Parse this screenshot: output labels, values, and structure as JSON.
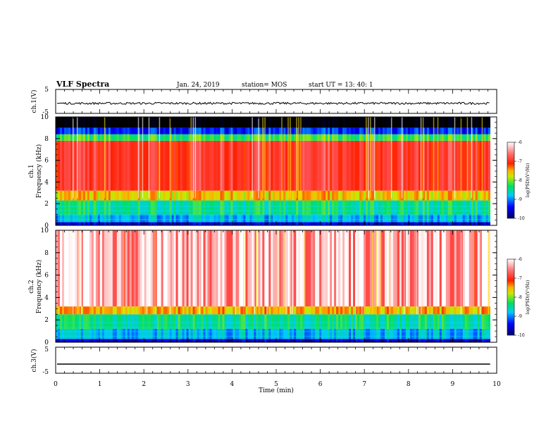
{
  "header": {
    "title": "VLF Spectra",
    "date": "Jan. 24, 2019",
    "station": "station= MOS",
    "start": "start  UT =   13: 40: 1"
  },
  "chart_data": [
    {
      "type": "line",
      "panel": "ch1-waveform",
      "ylabel": "ch.1(V)",
      "ylim": [
        -5,
        5
      ],
      "yticks": [
        "5",
        "-5"
      ],
      "x": [
        0,
        10
      ],
      "series": [
        {
          "values": [
            -0.8,
            -0.8
          ]
        }
      ]
    },
    {
      "type": "heatmap",
      "panel": "ch1-spectrogram",
      "ylabel": "ch.1\nFrequency (kHz)",
      "ylim": [
        0,
        10
      ],
      "yticks": [
        "0",
        "2",
        "4",
        "6",
        "8",
        "10"
      ],
      "bands_khz": [
        {
          "from": 0,
          "to": 0.3,
          "level": -9.6
        },
        {
          "from": 0.3,
          "to": 1.0,
          "level": -8.8
        },
        {
          "from": 1.0,
          "to": 2.3,
          "level": -8.4
        },
        {
          "from": 2.3,
          "to": 3.2,
          "level": -7.6
        },
        {
          "from": 3.2,
          "to": 7.8,
          "level": -6.8
        },
        {
          "from": 7.8,
          "to": 8.4,
          "level": -8.2
        },
        {
          "from": 8.4,
          "to": 9.0,
          "level": -9.3
        },
        {
          "from": 9.0,
          "to": 10,
          "level": -11
        }
      ],
      "colorbar": {
        "label": "log(PSD)(V²/Hz)",
        "min": -10,
        "max": -6,
        "ticks": [
          "-6",
          "-7",
          "-8",
          "-9",
          "-10"
        ]
      }
    },
    {
      "type": "heatmap",
      "panel": "ch2-spectrogram",
      "ylabel": "ch.2\nFrequency (kHz)",
      "ylim": [
        0,
        10
      ],
      "yticks": [
        "0",
        "2",
        "4",
        "6",
        "8",
        "10"
      ],
      "bands_khz": [
        {
          "from": 0,
          "to": 0.3,
          "level": -9.6
        },
        {
          "from": 0.3,
          "to": 1.2,
          "level": -8.8
        },
        {
          "from": 1.2,
          "to": 2.5,
          "level": -8.4
        },
        {
          "from": 2.5,
          "to": 3.2,
          "level": -7.5
        },
        {
          "from": 3.2,
          "to": 10,
          "level": -6.2
        }
      ],
      "colorbar": {
        "label": "log(PSD)(V²/Hz)",
        "min": -10,
        "max": -6,
        "ticks": [
          "-6",
          "-7",
          "-8",
          "-9",
          "-10"
        ]
      }
    },
    {
      "type": "line",
      "panel": "ch3-waveform",
      "ylabel": "ch.3(V)",
      "ylim": [
        -5,
        5
      ],
      "yticks": [
        "5",
        "-5"
      ],
      "x": [
        0,
        10
      ],
      "series": [
        {
          "values": [
            -1.5,
            -1.5
          ]
        }
      ]
    }
  ],
  "xaxis": {
    "label": "Time (min)",
    "range": [
      0,
      10
    ],
    "ticks": [
      "0",
      "1",
      "2",
      "3",
      "4",
      "5",
      "6",
      "7",
      "8",
      "9",
      "10"
    ],
    "data_end": 9.85
  }
}
